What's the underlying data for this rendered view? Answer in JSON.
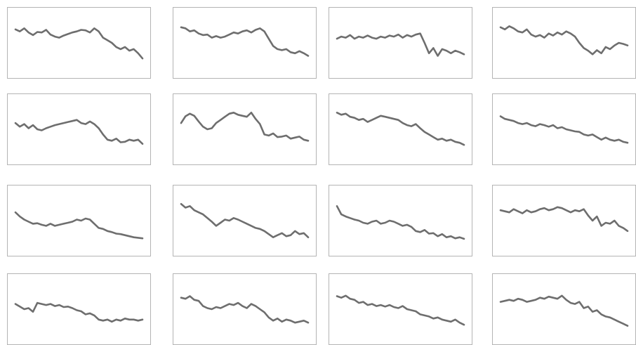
{
  "colors": {
    "background": "#ffffff",
    "frame": "#b4b4b4",
    "line": "#6e6e6e"
  },
  "chart_data": [
    {
      "type": "line",
      "ylim": [
        0,
        100
      ],
      "y": [
        76,
        72,
        78,
        70,
        65,
        71,
        70,
        75,
        66,
        62,
        60,
        64,
        67,
        70,
        72,
        75,
        74,
        70,
        78,
        72,
        60,
        55,
        50,
        42,
        38,
        42,
        35,
        38,
        30,
        20
      ]
    },
    {
      "type": "line",
      "ylim": [
        0,
        100
      ],
      "y": [
        80,
        78,
        72,
        74,
        68,
        65,
        66,
        60,
        63,
        60,
        62,
        66,
        70,
        68,
        72,
        74,
        70,
        75,
        78,
        72,
        58,
        44,
        38,
        36,
        38,
        32,
        30,
        34,
        30,
        25
      ]
    },
    {
      "type": "line",
      "ylim": [
        0,
        100
      ],
      "y": [
        58,
        62,
        60,
        65,
        58,
        62,
        60,
        64,
        60,
        58,
        62,
        60,
        64,
        62,
        66,
        60,
        65,
        62,
        66,
        68,
        50,
        30,
        40,
        25,
        38,
        35,
        30,
        35,
        32,
        28
      ]
    },
    {
      "type": "line",
      "ylim": [
        0,
        100
      ],
      "y": [
        80,
        76,
        82,
        78,
        72,
        70,
        76,
        66,
        62,
        65,
        60,
        68,
        64,
        70,
        66,
        72,
        68,
        62,
        50,
        40,
        35,
        28,
        36,
        30,
        42,
        38,
        45,
        50,
        48,
        45
      ]
    },
    {
      "type": "line",
      "ylim": [
        0,
        100
      ],
      "y": [
        62,
        55,
        60,
        52,
        58,
        50,
        48,
        52,
        55,
        58,
        60,
        62,
        64,
        66,
        68,
        62,
        60,
        65,
        60,
        52,
        40,
        30,
        28,
        32,
        25,
        26,
        30,
        28,
        30,
        22
      ]
    },
    {
      "type": "line",
      "ylim": [
        0,
        100
      ],
      "y": [
        62,
        75,
        80,
        76,
        65,
        55,
        50,
        52,
        62,
        68,
        74,
        80,
        82,
        78,
        76,
        74,
        82,
        70,
        60,
        40,
        38,
        42,
        35,
        36,
        38,
        32,
        34,
        36,
        30,
        28
      ]
    },
    {
      "type": "line",
      "ylim": [
        0,
        100
      ],
      "y": [
        82,
        78,
        80,
        74,
        72,
        68,
        70,
        64,
        68,
        72,
        76,
        74,
        72,
        70,
        68,
        62,
        58,
        56,
        60,
        52,
        45,
        40,
        35,
        30,
        32,
        28,
        30,
        26,
        24,
        20
      ]
    },
    {
      "type": "line",
      "ylim": [
        0,
        100
      ],
      "y": [
        75,
        70,
        68,
        66,
        62,
        60,
        62,
        58,
        56,
        60,
        58,
        55,
        58,
        52,
        54,
        50,
        48,
        46,
        45,
        40,
        38,
        40,
        35,
        30,
        34,
        30,
        28,
        30,
        26,
        24
      ]
    },
    {
      "type": "line",
      "ylim": [
        0,
        100
      ],
      "y": [
        66,
        58,
        52,
        48,
        44,
        45,
        42,
        40,
        44,
        40,
        42,
        44,
        46,
        48,
        52,
        50,
        54,
        52,
        44,
        36,
        34,
        30,
        28,
        25,
        24,
        22,
        20,
        18,
        17,
        16
      ]
    },
    {
      "type": "line",
      "ylim": [
        0,
        100
      ],
      "y": [
        82,
        75,
        78,
        70,
        66,
        62,
        55,
        48,
        40,
        46,
        52,
        50,
        55,
        52,
        48,
        44,
        40,
        36,
        34,
        30,
        24,
        18,
        22,
        26,
        20,
        22,
        30,
        24,
        26,
        18
      ]
    },
    {
      "type": "line",
      "ylim": [
        0,
        100
      ],
      "y": [
        78,
        62,
        58,
        55,
        52,
        50,
        46,
        44,
        48,
        50,
        44,
        46,
        50,
        48,
        44,
        40,
        42,
        38,
        30,
        28,
        32,
        25,
        26,
        20,
        24,
        18,
        20,
        16,
        18,
        15
      ]
    },
    {
      "type": "line",
      "ylim": [
        0,
        100
      ],
      "y": [
        70,
        68,
        66,
        72,
        68,
        64,
        70,
        66,
        68,
        72,
        74,
        70,
        72,
        76,
        74,
        70,
        66,
        70,
        68,
        72,
        60,
        50,
        58,
        40,
        46,
        44,
        50,
        40,
        36,
        30
      ]
    },
    {
      "type": "line",
      "ylim": [
        0,
        100
      ],
      "y": [
        60,
        55,
        50,
        52,
        45,
        62,
        60,
        58,
        60,
        56,
        58,
        54,
        55,
        52,
        48,
        46,
        40,
        42,
        38,
        30,
        28,
        30,
        26,
        30,
        28,
        32,
        30,
        30,
        28,
        30
      ]
    },
    {
      "type": "line",
      "ylim": [
        0,
        100
      ],
      "y": [
        72,
        70,
        75,
        68,
        66,
        56,
        52,
        50,
        54,
        52,
        56,
        60,
        58,
        62,
        56,
        52,
        60,
        56,
        50,
        44,
        34,
        28,
        32,
        26,
        30,
        28,
        24,
        26,
        28,
        24
      ]
    },
    {
      "type": "line",
      "ylim": [
        0,
        100
      ],
      "y": [
        75,
        72,
        76,
        70,
        68,
        62,
        64,
        58,
        60,
        56,
        58,
        55,
        58,
        54,
        52,
        56,
        50,
        48,
        46,
        40,
        38,
        36,
        32,
        34,
        30,
        28,
        26,
        30,
        24,
        20
      ]
    },
    {
      "type": "line",
      "ylim": [
        0,
        100
      ],
      "y": [
        64,
        66,
        68,
        66,
        70,
        68,
        64,
        66,
        68,
        72,
        70,
        74,
        72,
        70,
        76,
        68,
        62,
        60,
        64,
        52,
        55,
        45,
        48,
        40,
        36,
        34,
        30,
        26,
        22,
        18
      ]
    }
  ]
}
